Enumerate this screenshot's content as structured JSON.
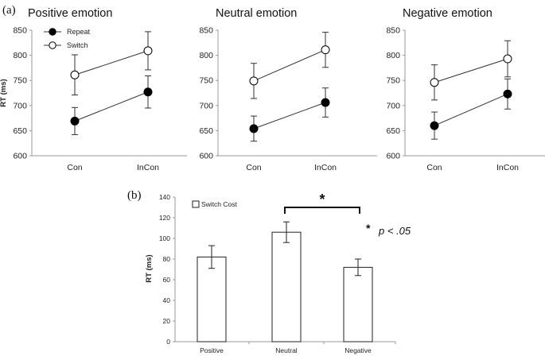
{
  "panel_a_label": "(a)",
  "panel_b_label": "(b)",
  "chart_data": [
    {
      "type": "line",
      "title": "Positive emotion",
      "ylabel": "RT (ms)",
      "xlabel": "",
      "categories": [
        "Con",
        "InCon"
      ],
      "ylim": [
        600,
        850
      ],
      "yticks": [
        600,
        650,
        700,
        750,
        800,
        850
      ],
      "legend": [
        "Repeat",
        "Switch"
      ],
      "series": [
        {
          "name": "Repeat",
          "marker": "filled",
          "values": [
            669,
            727
          ],
          "errors": [
            27,
            32
          ]
        },
        {
          "name": "Switch",
          "marker": "open",
          "values": [
            761,
            809
          ],
          "errors": [
            40,
            38
          ]
        }
      ]
    },
    {
      "type": "line",
      "title": "Neutral emotion",
      "ylabel": "",
      "xlabel": "",
      "categories": [
        "Con",
        "InCon"
      ],
      "ylim": [
        600,
        850
      ],
      "yticks": [
        600,
        650,
        700,
        750,
        800,
        850
      ],
      "series": [
        {
          "name": "Repeat",
          "marker": "filled",
          "values": [
            654,
            706
          ],
          "errors": [
            25,
            29
          ]
        },
        {
          "name": "Switch",
          "marker": "open",
          "values": [
            749,
            811
          ],
          "errors": [
            35,
            35
          ]
        }
      ]
    },
    {
      "type": "line",
      "title": "Negative emotion",
      "ylabel": "",
      "xlabel": "",
      "categories": [
        "Con",
        "InCon"
      ],
      "ylim": [
        600,
        850
      ],
      "yticks": [
        600,
        650,
        700,
        750,
        800,
        850
      ],
      "series": [
        {
          "name": "Repeat",
          "marker": "filled",
          "values": [
            660,
            723
          ],
          "errors": [
            27,
            30
          ]
        },
        {
          "name": "Switch",
          "marker": "open",
          "values": [
            746,
            793
          ],
          "errors": [
            35,
            36
          ]
        }
      ]
    },
    {
      "type": "bar",
      "title": "",
      "ylabel": "RT (ms)",
      "xlabel": "",
      "categories": [
        "Positive",
        "Neutral",
        "Negative"
      ],
      "ylim": [
        0,
        140
      ],
      "yticks": [
        0,
        20,
        40,
        60,
        80,
        100,
        120,
        140
      ],
      "legend": [
        "Switch Cost"
      ],
      "series": [
        {
          "name": "Switch Cost",
          "values": [
            82,
            106,
            72
          ],
          "errors": [
            11,
            10,
            8
          ]
        }
      ],
      "annotation": {
        "bracket": [
          "Neutral",
          "Negative"
        ],
        "star": "*",
        "note_star": "*",
        "note_text": "p < .05"
      }
    }
  ]
}
